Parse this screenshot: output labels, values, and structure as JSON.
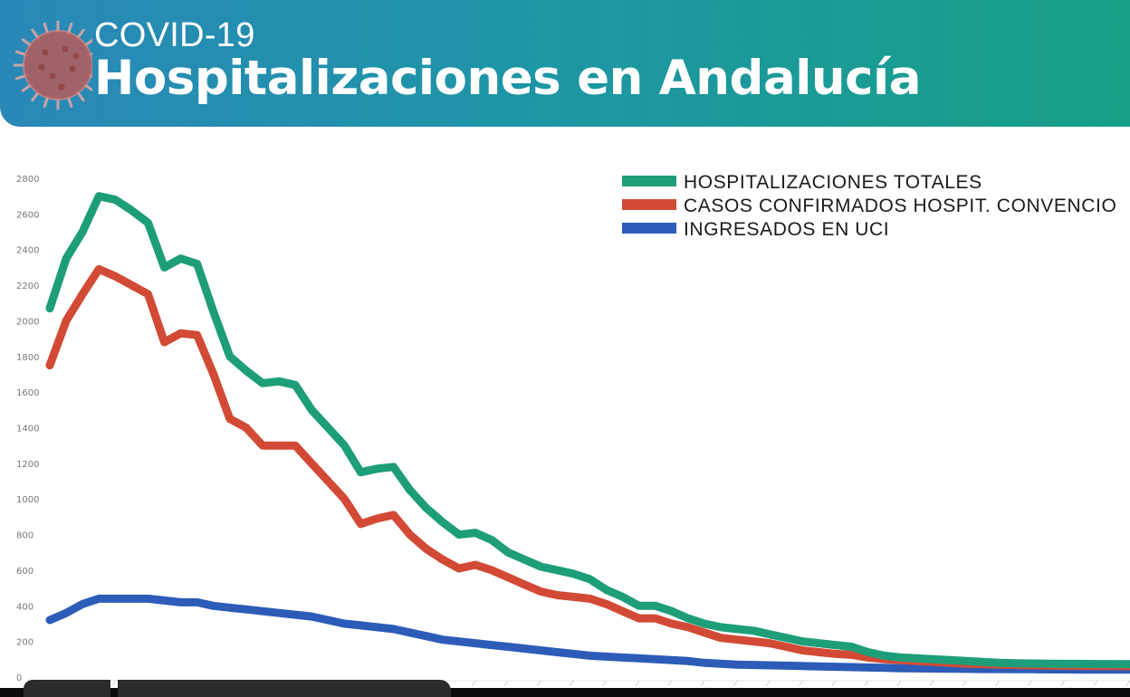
{
  "header": {
    "kicker": "COVID-19",
    "title": "Hospitalizaciones en Andalucía",
    "icon": "virus-icon"
  },
  "colors": {
    "banner_left": "#2a88b8",
    "banner_right": "#17a086",
    "total": "#1e9e78",
    "confirmed": "#d24a35",
    "uci": "#2d5cb8"
  },
  "chart_data": {
    "type": "line",
    "title": "",
    "xlabel": "",
    "ylabel": "",
    "ylim": [
      0,
      2800
    ],
    "yticks": [
      0,
      200,
      400,
      600,
      800,
      1000,
      1200,
      1400,
      1600,
      1800,
      2000,
      2200,
      2400,
      2600,
      2800
    ],
    "grid": false,
    "legend": "right",
    "x": [
      0,
      1,
      2,
      3,
      4,
      5,
      6,
      7,
      8,
      9,
      10,
      11,
      12,
      13,
      14,
      15,
      16,
      17,
      18,
      19,
      20,
      21,
      22,
      23,
      24,
      25,
      26,
      27,
      28,
      29,
      30,
      31,
      32,
      33,
      34,
      35,
      36,
      37,
      38,
      39,
      40,
      41,
      42,
      43,
      44,
      45,
      46,
      47,
      48,
      49,
      50,
      51,
      52,
      53,
      54,
      55,
      56,
      57,
      58,
      59,
      60,
      61,
      62,
      63,
      64,
      65,
      66
    ],
    "series": [
      {
        "name": "HOSPITALIZACIONES TOTALES",
        "color": "#1e9e78",
        "values": [
          2070,
          2350,
          2500,
          2700,
          2680,
          2620,
          2550,
          2300,
          2350,
          2320,
          2050,
          1800,
          1720,
          1650,
          1660,
          1640,
          1500,
          1400,
          1300,
          1150,
          1170,
          1180,
          1050,
          950,
          870,
          800,
          810,
          770,
          700,
          660,
          620,
          600,
          580,
          550,
          490,
          450,
          400,
          400,
          370,
          330,
          300,
          280,
          270,
          260,
          240,
          220,
          200,
          190,
          180,
          170,
          140,
          120,
          110,
          105,
          100,
          95,
          90,
          85,
          80,
          78,
          76,
          75,
          74,
          74,
          73,
          73,
          72
        ]
      },
      {
        "name": "CASOS CONFIRMADOS HOSPIT. CONVENCIO",
        "color": "#d24a35",
        "values": [
          1750,
          2000,
          2150,
          2290,
          2250,
          2200,
          2150,
          1880,
          1930,
          1920,
          1700,
          1450,
          1400,
          1300,
          1300,
          1300,
          1200,
          1100,
          1000,
          860,
          890,
          910,
          800,
          720,
          660,
          610,
          630,
          600,
          560,
          520,
          480,
          460,
          450,
          440,
          410,
          370,
          330,
          330,
          300,
          280,
          250,
          220,
          210,
          200,
          190,
          170,
          150,
          140,
          130,
          125,
          110,
          100,
          95,
          90,
          85,
          80,
          75,
          72,
          70,
          68,
          66,
          65,
          64,
          63,
          62,
          62,
          61
        ]
      },
      {
        "name": "INGRESADOS EN UCI",
        "color": "#2d5cb8",
        "values": [
          320,
          360,
          410,
          440,
          440,
          440,
          440,
          430,
          420,
          420,
          400,
          390,
          380,
          370,
          360,
          350,
          340,
          320,
          300,
          290,
          280,
          270,
          250,
          230,
          210,
          200,
          190,
          180,
          170,
          160,
          150,
          140,
          130,
          120,
          115,
          110,
          105,
          100,
          95,
          90,
          80,
          75,
          70,
          68,
          66,
          64,
          62,
          60,
          58,
          56,
          54,
          52,
          50,
          49,
          48,
          47,
          46,
          45,
          45,
          44,
          44,
          43,
          43,
          42,
          42,
          42,
          42
        ]
      }
    ]
  }
}
